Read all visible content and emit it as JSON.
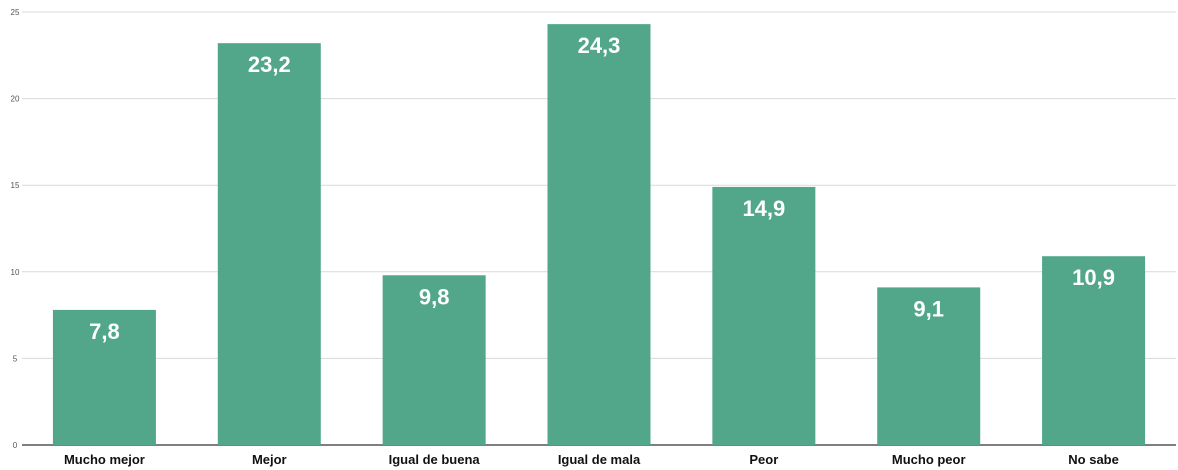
{
  "chart_data": {
    "type": "bar",
    "title": "",
    "xlabel": "",
    "ylabel": "",
    "categories": [
      "Mucho mejor",
      "Mejor",
      "Igual de buena",
      "Igual de mala",
      "Peor",
      "Mucho peor",
      "No sabe"
    ],
    "values": [
      7.8,
      23.2,
      9.8,
      24.3,
      14.9,
      9.1,
      10.9
    ],
    "data_labels": [
      "7,8",
      "23,2",
      "9,8",
      "24,3",
      "14,9",
      "9,1",
      "10,9"
    ],
    "ylim": [
      0,
      25
    ],
    "y_ticks": [
      "0",
      "5",
      "10",
      "15",
      "20",
      "25"
    ],
    "grid": true,
    "legend": "none",
    "colors": {
      "bar": "#52a78a",
      "grid": "#d9d9d9",
      "axis": "#333333"
    }
  }
}
